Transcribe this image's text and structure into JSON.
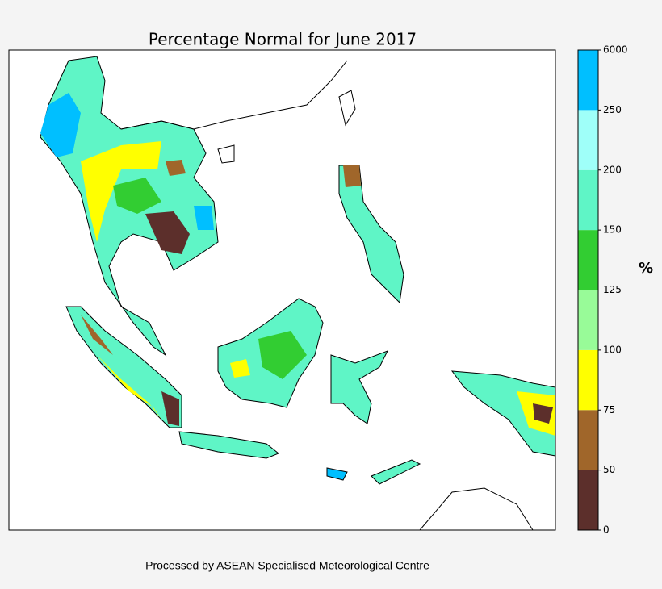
{
  "title": "Percentage Normal for June 2017",
  "colorbar": {
    "label": "%",
    "ticks": [
      0,
      50,
      75,
      100,
      125,
      150,
      200,
      250,
      6000
    ],
    "colors": [
      "#5c2f2b",
      "#a0662a",
      "#ffff00",
      "#98fb98",
      "#32cd32",
      "#5ff5c6",
      "#9ffff9",
      "#00bfff"
    ]
  },
  "footer": "Processed by ASEAN Specialised Meteorological Centre"
}
